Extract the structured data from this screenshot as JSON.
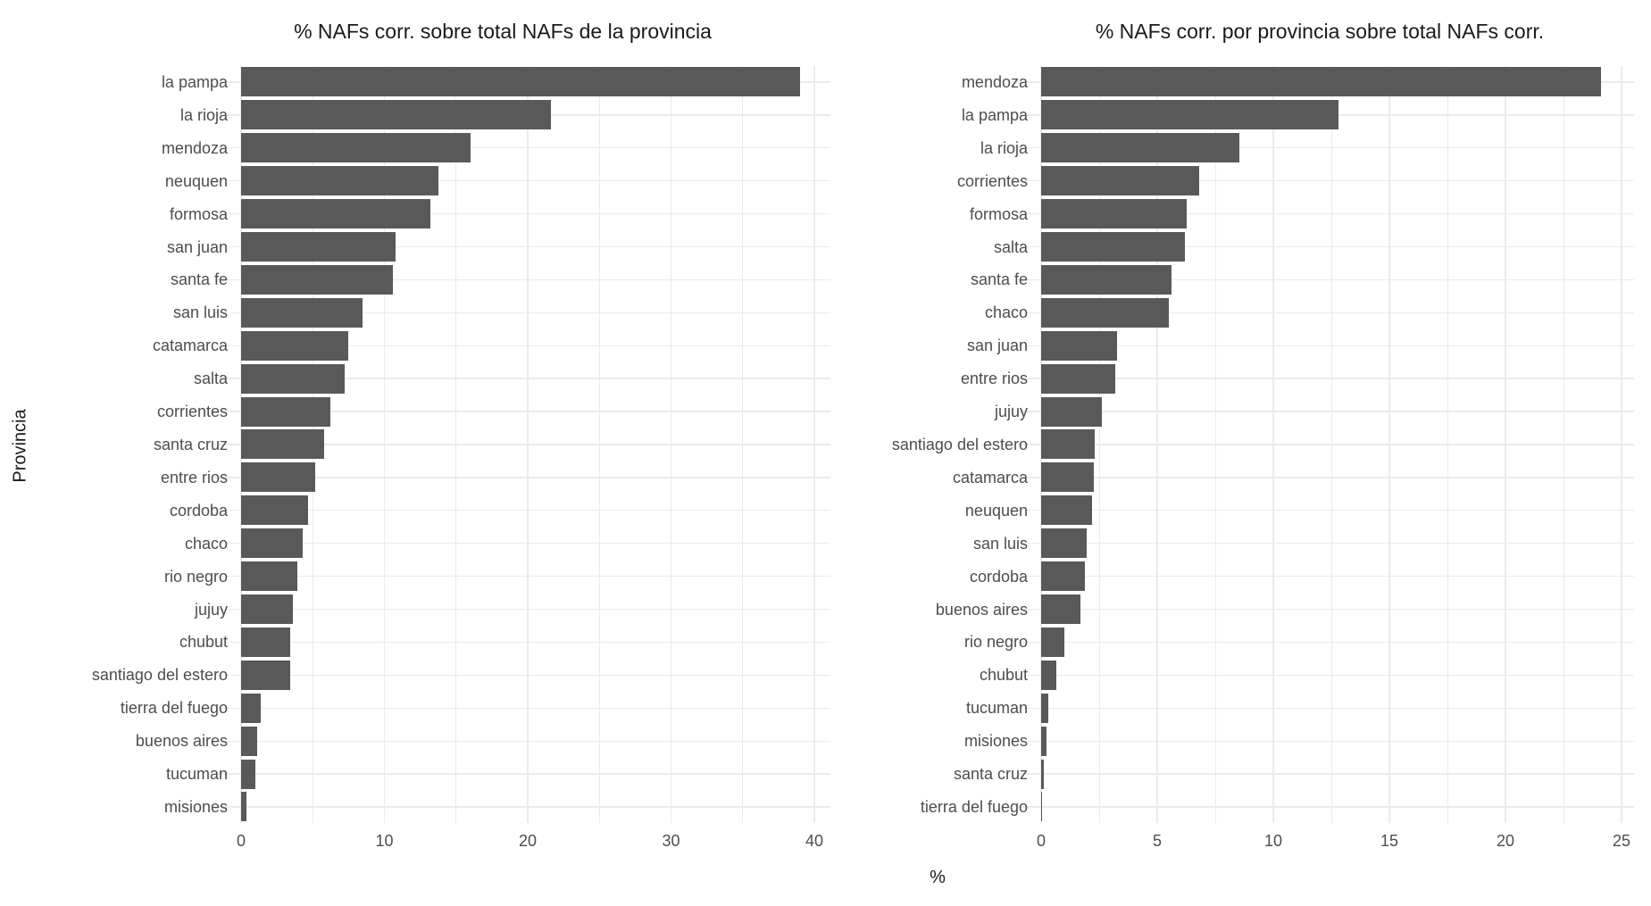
{
  "figure": {
    "y_axis_title": "Provincia",
    "x_axis_title": "%",
    "bar_color": "#595959",
    "grid_color": "#ebebeb",
    "axis_text_color": "#4d4d4d",
    "title_color": "#1a1a1a",
    "background_color": "#ffffff"
  },
  "chart_data": [
    {
      "type": "bar",
      "orientation": "horizontal",
      "title": "% NAFs corr. sobre total NAFs de la provincia",
      "xlabel": "%",
      "ylabel": "Provincia",
      "xlim": [
        0,
        40
      ],
      "x_ticks": [
        0,
        10,
        20,
        30,
        40
      ],
      "grid": true,
      "legend": "none",
      "categories": [
        "la pampa",
        "la rioja",
        "mendoza",
        "neuquen",
        "formosa",
        "san juan",
        "santa fe",
        "san luis",
        "catamarca",
        "salta",
        "corrientes",
        "santa cruz",
        "entre rios",
        "cordoba",
        "chaco",
        "rio negro",
        "jujuy",
        "chubut",
        "santiago del estero",
        "tierra del fuego",
        "buenos aires",
        "tucuman",
        "misiones"
      ],
      "values": [
        39.0,
        21.6,
        16.0,
        13.8,
        13.2,
        10.75,
        10.6,
        8.5,
        7.5,
        7.25,
        6.2,
        5.8,
        5.15,
        4.65,
        4.3,
        3.9,
        3.6,
        3.45,
        3.4,
        1.4,
        1.1,
        1.0,
        0.35
      ]
    },
    {
      "type": "bar",
      "orientation": "horizontal",
      "title": "% NAFs corr. por provincia sobre total NAFs corr.",
      "xlabel": "%",
      "ylabel": "Provincia",
      "xlim": [
        0,
        25
      ],
      "x_ticks": [
        0,
        5,
        10,
        15,
        20,
        25
      ],
      "grid": true,
      "legend": "none",
      "categories": [
        "mendoza",
        "la pampa",
        "la rioja",
        "corrientes",
        "formosa",
        "salta",
        "santa fe",
        "chaco",
        "san juan",
        "entre rios",
        "jujuy",
        "santiago del estero",
        "catamarca",
        "neuquen",
        "san luis",
        "cordoba",
        "buenos aires",
        "rio negro",
        "chubut",
        "tucuman",
        "misiones",
        "santa cruz",
        "tierra del fuego"
      ],
      "values": [
        24.1,
        12.8,
        8.55,
        6.8,
        6.25,
        6.2,
        5.6,
        5.5,
        3.25,
        3.2,
        2.6,
        2.3,
        2.25,
        2.2,
        1.95,
        1.9,
        1.7,
        1.0,
        0.67,
        0.3,
        0.22,
        0.13,
        0.02
      ]
    }
  ]
}
